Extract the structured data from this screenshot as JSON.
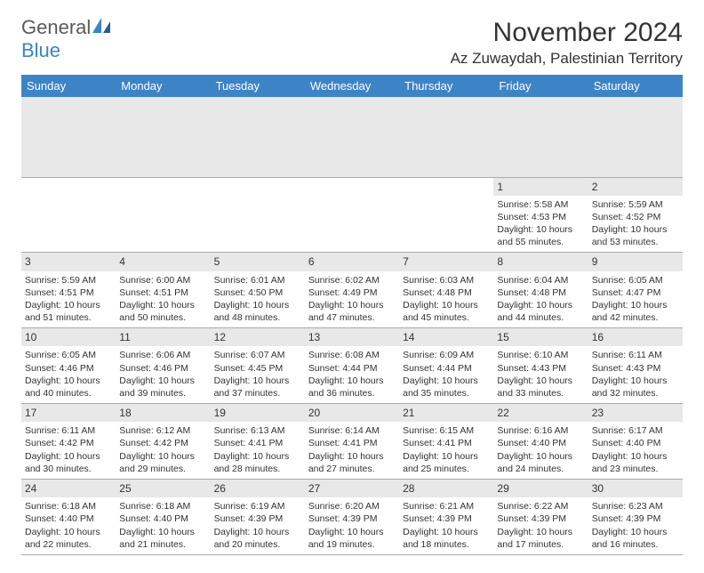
{
  "logo": {
    "text1": "General",
    "text2": "Blue"
  },
  "header": {
    "title": "November 2024",
    "location": "Az Zuwaydah, Palestinian Territory"
  },
  "colors": {
    "header_bg": "#3d84c6",
    "header_text": "#ffffff",
    "day_strip_bg": "#e8e8e8",
    "border": "#aaaaaa",
    "text": "#333333",
    "logo_gray": "#5a5a5a",
    "logo_blue": "#3d84c6"
  },
  "weekdays": [
    "Sunday",
    "Monday",
    "Tuesday",
    "Wednesday",
    "Thursday",
    "Friday",
    "Saturday"
  ],
  "weeks": [
    [
      {
        "empty": true
      },
      {
        "empty": true
      },
      {
        "empty": true
      },
      {
        "empty": true
      },
      {
        "empty": true
      },
      {
        "day": "1",
        "sunrise": "Sunrise: 5:58 AM",
        "sunset": "Sunset: 4:53 PM",
        "daylight": "Daylight: 10 hours and 55 minutes."
      },
      {
        "day": "2",
        "sunrise": "Sunrise: 5:59 AM",
        "sunset": "Sunset: 4:52 PM",
        "daylight": "Daylight: 10 hours and 53 minutes."
      }
    ],
    [
      {
        "day": "3",
        "sunrise": "Sunrise: 5:59 AM",
        "sunset": "Sunset: 4:51 PM",
        "daylight": "Daylight: 10 hours and 51 minutes."
      },
      {
        "day": "4",
        "sunrise": "Sunrise: 6:00 AM",
        "sunset": "Sunset: 4:51 PM",
        "daylight": "Daylight: 10 hours and 50 minutes."
      },
      {
        "day": "5",
        "sunrise": "Sunrise: 6:01 AM",
        "sunset": "Sunset: 4:50 PM",
        "daylight": "Daylight: 10 hours and 48 minutes."
      },
      {
        "day": "6",
        "sunrise": "Sunrise: 6:02 AM",
        "sunset": "Sunset: 4:49 PM",
        "daylight": "Daylight: 10 hours and 47 minutes."
      },
      {
        "day": "7",
        "sunrise": "Sunrise: 6:03 AM",
        "sunset": "Sunset: 4:48 PM",
        "daylight": "Daylight: 10 hours and 45 minutes."
      },
      {
        "day": "8",
        "sunrise": "Sunrise: 6:04 AM",
        "sunset": "Sunset: 4:48 PM",
        "daylight": "Daylight: 10 hours and 44 minutes."
      },
      {
        "day": "9",
        "sunrise": "Sunrise: 6:05 AM",
        "sunset": "Sunset: 4:47 PM",
        "daylight": "Daylight: 10 hours and 42 minutes."
      }
    ],
    [
      {
        "day": "10",
        "sunrise": "Sunrise: 6:05 AM",
        "sunset": "Sunset: 4:46 PM",
        "daylight": "Daylight: 10 hours and 40 minutes."
      },
      {
        "day": "11",
        "sunrise": "Sunrise: 6:06 AM",
        "sunset": "Sunset: 4:46 PM",
        "daylight": "Daylight: 10 hours and 39 minutes."
      },
      {
        "day": "12",
        "sunrise": "Sunrise: 6:07 AM",
        "sunset": "Sunset: 4:45 PM",
        "daylight": "Daylight: 10 hours and 37 minutes."
      },
      {
        "day": "13",
        "sunrise": "Sunrise: 6:08 AM",
        "sunset": "Sunset: 4:44 PM",
        "daylight": "Daylight: 10 hours and 36 minutes."
      },
      {
        "day": "14",
        "sunrise": "Sunrise: 6:09 AM",
        "sunset": "Sunset: 4:44 PM",
        "daylight": "Daylight: 10 hours and 35 minutes."
      },
      {
        "day": "15",
        "sunrise": "Sunrise: 6:10 AM",
        "sunset": "Sunset: 4:43 PM",
        "daylight": "Daylight: 10 hours and 33 minutes."
      },
      {
        "day": "16",
        "sunrise": "Sunrise: 6:11 AM",
        "sunset": "Sunset: 4:43 PM",
        "daylight": "Daylight: 10 hours and 32 minutes."
      }
    ],
    [
      {
        "day": "17",
        "sunrise": "Sunrise: 6:11 AM",
        "sunset": "Sunset: 4:42 PM",
        "daylight": "Daylight: 10 hours and 30 minutes."
      },
      {
        "day": "18",
        "sunrise": "Sunrise: 6:12 AM",
        "sunset": "Sunset: 4:42 PM",
        "daylight": "Daylight: 10 hours and 29 minutes."
      },
      {
        "day": "19",
        "sunrise": "Sunrise: 6:13 AM",
        "sunset": "Sunset: 4:41 PM",
        "daylight": "Daylight: 10 hours and 28 minutes."
      },
      {
        "day": "20",
        "sunrise": "Sunrise: 6:14 AM",
        "sunset": "Sunset: 4:41 PM",
        "daylight": "Daylight: 10 hours and 27 minutes."
      },
      {
        "day": "21",
        "sunrise": "Sunrise: 6:15 AM",
        "sunset": "Sunset: 4:41 PM",
        "daylight": "Daylight: 10 hours and 25 minutes."
      },
      {
        "day": "22",
        "sunrise": "Sunrise: 6:16 AM",
        "sunset": "Sunset: 4:40 PM",
        "daylight": "Daylight: 10 hours and 24 minutes."
      },
      {
        "day": "23",
        "sunrise": "Sunrise: 6:17 AM",
        "sunset": "Sunset: 4:40 PM",
        "daylight": "Daylight: 10 hours and 23 minutes."
      }
    ],
    [
      {
        "day": "24",
        "sunrise": "Sunrise: 6:18 AM",
        "sunset": "Sunset: 4:40 PM",
        "daylight": "Daylight: 10 hours and 22 minutes."
      },
      {
        "day": "25",
        "sunrise": "Sunrise: 6:18 AM",
        "sunset": "Sunset: 4:40 PM",
        "daylight": "Daylight: 10 hours and 21 minutes."
      },
      {
        "day": "26",
        "sunrise": "Sunrise: 6:19 AM",
        "sunset": "Sunset: 4:39 PM",
        "daylight": "Daylight: 10 hours and 20 minutes."
      },
      {
        "day": "27",
        "sunrise": "Sunrise: 6:20 AM",
        "sunset": "Sunset: 4:39 PM",
        "daylight": "Daylight: 10 hours and 19 minutes."
      },
      {
        "day": "28",
        "sunrise": "Sunrise: 6:21 AM",
        "sunset": "Sunset: 4:39 PM",
        "daylight": "Daylight: 10 hours and 18 minutes."
      },
      {
        "day": "29",
        "sunrise": "Sunrise: 6:22 AM",
        "sunset": "Sunset: 4:39 PM",
        "daylight": "Daylight: 10 hours and 17 minutes."
      },
      {
        "day": "30",
        "sunrise": "Sunrise: 6:23 AM",
        "sunset": "Sunset: 4:39 PM",
        "daylight": "Daylight: 10 hours and 16 minutes."
      }
    ]
  ]
}
